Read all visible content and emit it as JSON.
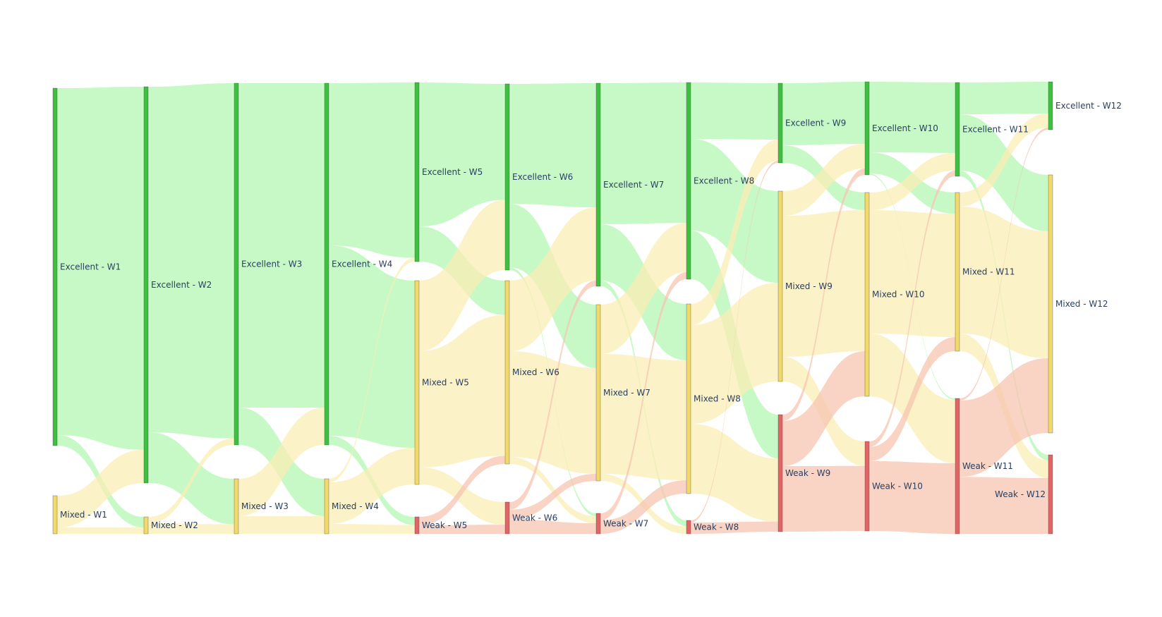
{
  "chart_data": {
    "type": "sankey",
    "colors": {
      "Excellent": "#3fbf3f",
      "Mixed": "#f2d96b",
      "Weak": "#e06666",
      "link_Excellent": "#b3f7b3",
      "link_Mixed": "#f9edb4",
      "link_Weak": "#f7c4b0"
    },
    "nodes": [
      {
        "id": "E1",
        "label": "Excellent - W1",
        "cat": "Excellent",
        "col": 0,
        "top": 125,
        "bottom": 632
      },
      {
        "id": "M1",
        "label": "Mixed - W1",
        "cat": "Mixed",
        "col": 0,
        "top": 703,
        "bottom": 757
      },
      {
        "id": "E2",
        "label": "Excellent - W2",
        "cat": "Excellent",
        "col": 1,
        "top": 123,
        "bottom": 685
      },
      {
        "id": "M2",
        "label": "Mixed - W2",
        "cat": "Mixed",
        "col": 1,
        "top": 733,
        "bottom": 757
      },
      {
        "id": "E3",
        "label": "Excellent - W3",
        "cat": "Excellent",
        "col": 2,
        "top": 118,
        "bottom": 631
      },
      {
        "id": "M3",
        "label": "Mixed - W3",
        "cat": "Mixed",
        "col": 2,
        "top": 679,
        "bottom": 757
      },
      {
        "id": "E4",
        "label": "Excellent - W4",
        "cat": "Excellent",
        "col": 3,
        "top": 118,
        "bottom": 631
      },
      {
        "id": "M4",
        "label": "Mixed - W4",
        "cat": "Mixed",
        "col": 3,
        "top": 679,
        "bottom": 757
      },
      {
        "id": "E5",
        "label": "Excellent - W5",
        "cat": "Excellent",
        "col": 4,
        "top": 117,
        "bottom": 371
      },
      {
        "id": "M5",
        "label": "Mixed - W5",
        "cat": "Mixed",
        "col": 4,
        "top": 398,
        "bottom": 687
      },
      {
        "id": "W5",
        "label": "Weak - W5",
        "cat": "Weak",
        "col": 4,
        "top": 733,
        "bottom": 757
      },
      {
        "id": "E6",
        "label": "Excellent - W6",
        "cat": "Excellent",
        "col": 5,
        "top": 119,
        "bottom": 383
      },
      {
        "id": "M6",
        "label": "Mixed - W6",
        "cat": "Mixed",
        "col": 5,
        "top": 398,
        "bottom": 658
      },
      {
        "id": "W6",
        "label": "Weak - W6",
        "cat": "Weak",
        "col": 5,
        "top": 712,
        "bottom": 757
      },
      {
        "id": "E7",
        "label": "Excellent - W7",
        "cat": "Excellent",
        "col": 6,
        "top": 118,
        "bottom": 406
      },
      {
        "id": "M7",
        "label": "Mixed - W7",
        "cat": "Mixed",
        "col": 6,
        "top": 432,
        "bottom": 682
      },
      {
        "id": "W7",
        "label": "Weak - W7",
        "cat": "Weak",
        "col": 6,
        "top": 728,
        "bottom": 757
      },
      {
        "id": "E8",
        "label": "Excellent - W8",
        "cat": "Excellent",
        "col": 7,
        "top": 117,
        "bottom": 396
      },
      {
        "id": "M8",
        "label": "Mixed - W8",
        "cat": "Mixed",
        "col": 7,
        "top": 431,
        "bottom": 700
      },
      {
        "id": "W8",
        "label": "Weak - W8",
        "cat": "Weak",
        "col": 7,
        "top": 738,
        "bottom": 757
      },
      {
        "id": "E9",
        "label": "Excellent - W9",
        "cat": "Excellent",
        "col": 8,
        "top": 118,
        "bottom": 231
      },
      {
        "id": "M9",
        "label": "Mixed - W9",
        "cat": "Mixed",
        "col": 8,
        "top": 271,
        "bottom": 541
      },
      {
        "id": "W9",
        "label": "Weak - W9",
        "cat": "Weak",
        "col": 8,
        "top": 588,
        "bottom": 754
      },
      {
        "id": "E10",
        "label": "Excellent - W10",
        "cat": "Excellent",
        "col": 9,
        "top": 116,
        "bottom": 248
      },
      {
        "id": "M10",
        "label": "Mixed - W10",
        "cat": "Mixed",
        "col": 9,
        "top": 273,
        "bottom": 562
      },
      {
        "id": "W10",
        "label": "Weak - W10",
        "cat": "Weak",
        "col": 9,
        "top": 626,
        "bottom": 753
      },
      {
        "id": "E11",
        "label": "Excellent - W11",
        "cat": "Excellent",
        "col": 10,
        "top": 117,
        "bottom": 250
      },
      {
        "id": "M11",
        "label": "Mixed - W11",
        "cat": "Mixed",
        "col": 10,
        "top": 273,
        "bottom": 498
      },
      {
        "id": "W11",
        "label": "Weak - W11",
        "cat": "Weak",
        "col": 10,
        "top": 565,
        "bottom": 757
      },
      {
        "id": "E12",
        "label": "Excellent - W12",
        "cat": "Excellent",
        "col": 11,
        "top": 116,
        "bottom": 184
      },
      {
        "id": "M12",
        "label": "Mixed - W12",
        "cat": "Mixed",
        "col": 11,
        "top": 248,
        "bottom": 614
      },
      {
        "id": "W12",
        "label": "Weak - W12",
        "cat": "Weak",
        "col": 11,
        "top": 645,
        "bottom": 757
      }
    ],
    "links": [
      {
        "source": "E1",
        "target": "E2",
        "value": 492
      },
      {
        "source": "E1",
        "target": "M2",
        "value": 15
      },
      {
        "source": "M1",
        "target": "E2",
        "value": 45
      },
      {
        "source": "M1",
        "target": "M2",
        "value": 9
      },
      {
        "source": "E2",
        "target": "E3",
        "value": 490
      },
      {
        "source": "E2",
        "target": "M3",
        "value": 72
      },
      {
        "source": "M2",
        "target": "E3",
        "value": 9
      },
      {
        "source": "M2",
        "target": "M3",
        "value": 15
      },
      {
        "source": "E3",
        "target": "E4",
        "value": 460
      },
      {
        "source": "E3",
        "target": "M4",
        "value": 53
      },
      {
        "source": "M3",
        "target": "E4",
        "value": 53
      },
      {
        "source": "M3",
        "target": "M4",
        "value": 25
      },
      {
        "source": "E4",
        "target": "E5",
        "value": 230
      },
      {
        "source": "E4",
        "target": "M5",
        "value": 270
      },
      {
        "source": "E4",
        "target": "W5",
        "value": 13
      },
      {
        "source": "M4",
        "target": "E5",
        "value": 5
      },
      {
        "source": "M4",
        "target": "M5",
        "value": 59
      },
      {
        "source": "M4",
        "target": "W5",
        "value": 14
      },
      {
        "source": "E5",
        "target": "E6",
        "value": 205
      },
      {
        "source": "E5",
        "target": "M6",
        "value": 50
      },
      {
        "source": "M5",
        "target": "E6",
        "value": 124
      },
      {
        "source": "M5",
        "target": "M6",
        "value": 205
      },
      {
        "source": "M5",
        "target": "W6",
        "value": 30
      },
      {
        "source": "W5",
        "target": "M6",
        "value": 12
      },
      {
        "source": "W5",
        "target": "W6",
        "value": 12
      },
      {
        "source": "E6",
        "target": "E7",
        "value": 170
      },
      {
        "source": "E6",
        "target": "M7",
        "value": 90
      },
      {
        "source": "E6",
        "target": "W7",
        "value": 4
      },
      {
        "source": "M6",
        "target": "E7",
        "value": 100
      },
      {
        "source": "M6",
        "target": "M7",
        "value": 150
      },
      {
        "source": "M6",
        "target": "W7",
        "value": 10
      },
      {
        "source": "W6",
        "target": "E7",
        "value": 8
      },
      {
        "source": "W6",
        "target": "M7",
        "value": 10
      },
      {
        "source": "W6",
        "target": "W7",
        "value": 15
      },
      {
        "source": "E7",
        "target": "E8",
        "value": 200
      },
      {
        "source": "E7",
        "target": "M8",
        "value": 80
      },
      {
        "source": "E7",
        "target": "W8",
        "value": 8
      },
      {
        "source": "M7",
        "target": "E8",
        "value": 70
      },
      {
        "source": "M7",
        "target": "M8",
        "value": 170
      },
      {
        "source": "M7",
        "target": "W8",
        "value": 10
      },
      {
        "source": "W7",
        "target": "E8",
        "value": 10
      },
      {
        "source": "W7",
        "target": "M8",
        "value": 19
      },
      {
        "source": "E8",
        "target": "E9",
        "value": 80
      },
      {
        "source": "E8",
        "target": "M9",
        "value": 130
      },
      {
        "source": "E8",
        "target": "W9",
        "value": 69
      },
      {
        "source": "M8",
        "target": "E9",
        "value": 30
      },
      {
        "source": "M8",
        "target": "M9",
        "value": 140
      },
      {
        "source": "M8",
        "target": "W9",
        "value": 99
      },
      {
        "source": "W8",
        "target": "E9",
        "value": 3
      },
      {
        "source": "W8",
        "target": "W9",
        "value": 16
      },
      {
        "source": "E9",
        "target": "E10",
        "value": 88
      },
      {
        "source": "E9",
        "target": "M10",
        "value": 25
      },
      {
        "source": "M9",
        "target": "E10",
        "value": 35
      },
      {
        "source": "M9",
        "target": "M10",
        "value": 200
      },
      {
        "source": "M9",
        "target": "W10",
        "value": 35
      },
      {
        "source": "W9",
        "target": "E10",
        "value": 9
      },
      {
        "source": "W9",
        "target": "M10",
        "value": 64
      },
      {
        "source": "W9",
        "target": "W10",
        "value": 93
      },
      {
        "source": "E10",
        "target": "E11",
        "value": 100
      },
      {
        "source": "E10",
        "target": "M11",
        "value": 30
      },
      {
        "source": "E10",
        "target": "W11",
        "value": 2
      },
      {
        "source": "M10",
        "target": "E11",
        "value": 25
      },
      {
        "source": "M10",
        "target": "M11",
        "value": 175
      },
      {
        "source": "M10",
        "target": "W11",
        "value": 89
      },
      {
        "source": "W10",
        "target": "E11",
        "value": 8
      },
      {
        "source": "W10",
        "target": "M11",
        "value": 20
      },
      {
        "source": "W10",
        "target": "W11",
        "value": 99
      },
      {
        "source": "E11",
        "target": "E12",
        "value": 45
      },
      {
        "source": "E11",
        "target": "M12",
        "value": 80
      },
      {
        "source": "E11",
        "target": "W12",
        "value": 8
      },
      {
        "source": "M11",
        "target": "E12",
        "value": 20
      },
      {
        "source": "M11",
        "target": "M12",
        "value": 180
      },
      {
        "source": "M11",
        "target": "W12",
        "value": 25
      },
      {
        "source": "W11",
        "target": "E12",
        "value": 3
      },
      {
        "source": "W11",
        "target": "M12",
        "value": 106
      },
      {
        "source": "W11",
        "target": "W12",
        "value": 79
      }
    ]
  }
}
